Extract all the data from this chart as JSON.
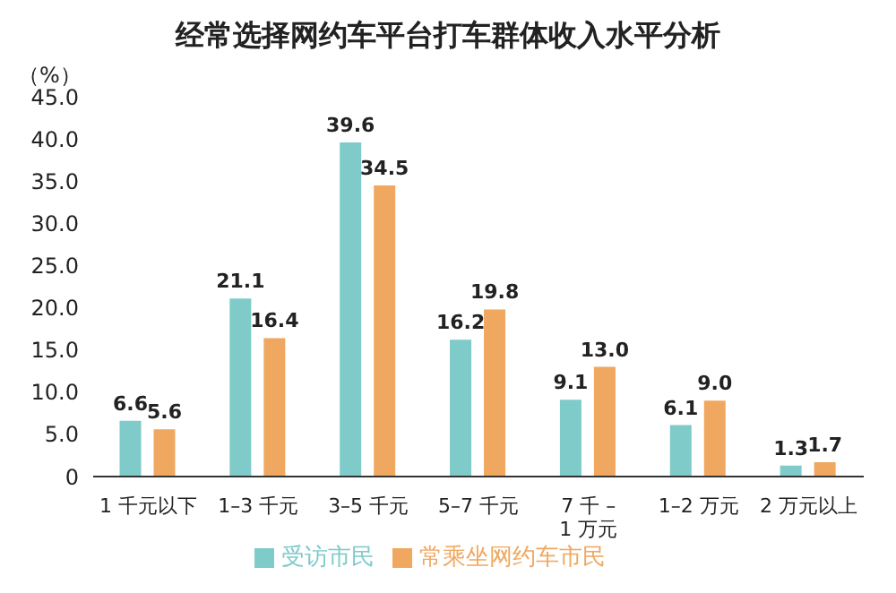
{
  "chart_data": {
    "type": "bar",
    "title": "经常选择网约车平台打车群体收入水平分析",
    "ylabel": "（%）",
    "categories": [
      "1 千元以下",
      "1–3 千元",
      "3–5 千元",
      "5–7 千元",
      "7 千 – 1 万元",
      "1–2 万元",
      "2 万元以上"
    ],
    "series": [
      {
        "name": "受访市民",
        "color": "#7ecbc9",
        "values": [
          6.6,
          21.1,
          39.6,
          16.2,
          9.1,
          6.1,
          1.3
        ]
      },
      {
        "name": "常乘坐网约车市民",
        "color": "#f0a860",
        "values": [
          5.6,
          16.4,
          34.5,
          19.8,
          13.0,
          9.0,
          1.7
        ]
      }
    ],
    "value_labels": [
      [
        "6.6",
        "21.1",
        "39.6",
        "16.2",
        "9.1",
        "6.1",
        "1.3"
      ],
      [
        "5.6",
        "16.4",
        "34.5",
        "19.8",
        "13.0",
        "9.0",
        "1.7"
      ]
    ],
    "ylim": [
      0,
      45
    ],
    "yticks": [
      0,
      {
        "value": 5,
        "label": "5.0"
      },
      {
        "value": 10,
        "label": "10.0"
      },
      {
        "value": 15,
        "label": "15.0"
      },
      {
        "value": 20,
        "label": "20.0"
      },
      {
        "value": 25,
        "label": "25.0"
      },
      {
        "value": 30,
        "label": "30.0"
      },
      {
        "value": 35,
        "label": "35.0"
      },
      {
        "value": 40,
        "label": "40.0"
      },
      {
        "value": 45,
        "label": "45.0"
      }
    ],
    "grid": false,
    "legend": "bottom"
  }
}
